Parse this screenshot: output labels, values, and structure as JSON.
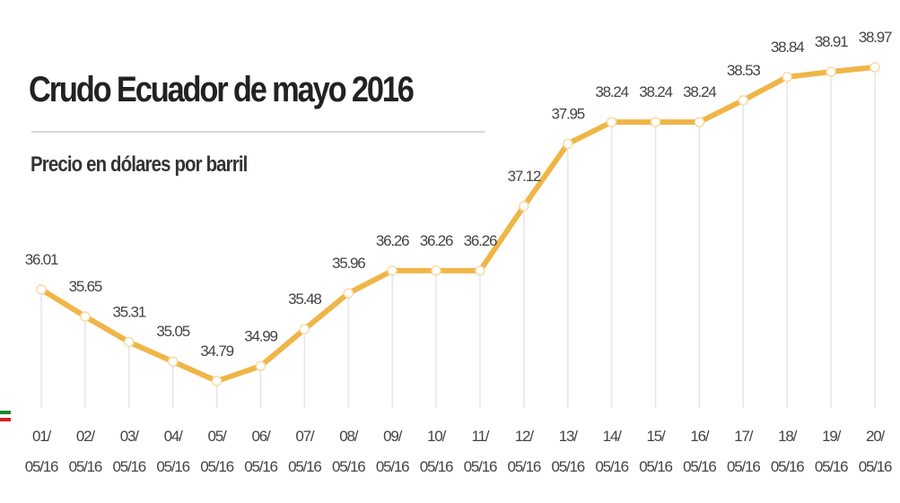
{
  "chart_data": {
    "type": "line",
    "title": "Crudo Ecuador de mayo 2016",
    "subtitle": "Precio en dólares por barril",
    "categories": [
      "01/ 05/16",
      "02/ 05/16",
      "03/ 05/16",
      "04/ 05/16",
      "05/ 05/16",
      "06/ 05/16",
      "07/ 05/16",
      "08/ 05/16",
      "09/ 05/16",
      "10/ 05/16",
      "11/ 05/16",
      "12/ 05/16",
      "13/ 05/16",
      "14/ 05/16",
      "15/ 05/16",
      "16/ 05/16",
      "17/ 05/16",
      "18/ 05/16",
      "19/ 05/16",
      "20/ 05/16"
    ],
    "values": [
      36.01,
      35.65,
      35.31,
      35.05,
      34.79,
      34.99,
      35.48,
      35.96,
      36.26,
      36.26,
      36.26,
      37.12,
      37.95,
      38.24,
      38.24,
      38.24,
      38.53,
      38.84,
      38.91,
      38.97
    ],
    "color": "#f0b547"
  }
}
